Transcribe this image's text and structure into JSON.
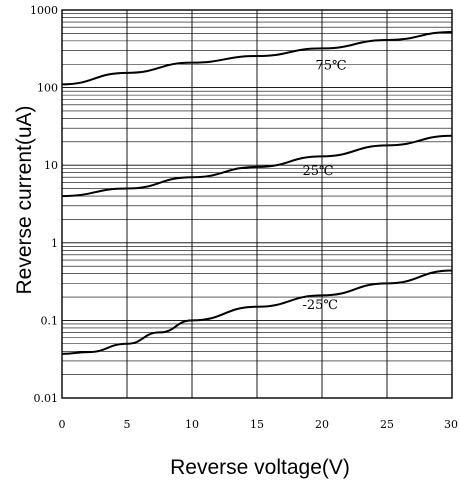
{
  "chart_data": {
    "type": "line",
    "xlabel": "Reverse voltage(V)",
    "ylabel": "Reverse current(uA)",
    "xlim": [
      0,
      30
    ],
    "ylim": [
      0.01,
      1000
    ],
    "y_scale": "log",
    "grid": true,
    "x_ticks": [
      0,
      5,
      10,
      15,
      20,
      25,
      30
    ],
    "x_tick_labels": [
      "0",
      "5",
      "10",
      "15",
      "20",
      "25",
      "30"
    ],
    "y_ticks": [
      0.01,
      0.1,
      1,
      10,
      100,
      1000
    ],
    "y_tick_labels": [
      "0.01",
      "0.1",
      "1",
      "10",
      "100",
      "1000"
    ],
    "series": [
      {
        "name": "75℃",
        "x": [
          0,
          5,
          10,
          15,
          20,
          25,
          30
        ],
        "y": [
          110,
          155,
          210,
          255,
          320,
          410,
          520
        ]
      },
      {
        "name": "25℃",
        "x": [
          0,
          5,
          10,
          15,
          20,
          25,
          30
        ],
        "y": [
          4.0,
          5.0,
          7.0,
          9.5,
          13,
          18,
          24
        ]
      },
      {
        "name": "-25℃",
        "x": [
          0,
          2,
          5,
          7.5,
          10,
          15,
          20,
          25,
          30
        ],
        "y": [
          0.037,
          0.039,
          0.05,
          0.07,
          0.1,
          0.15,
          0.21,
          0.3,
          0.44
        ]
      }
    ],
    "annotations": [
      {
        "text": "75℃",
        "x": 19.5,
        "y": 170
      },
      {
        "text": "25℃",
        "x": 18.5,
        "y": 7.5
      },
      {
        "text": "-25℃",
        "x": 18.5,
        "y": 0.14
      }
    ]
  }
}
